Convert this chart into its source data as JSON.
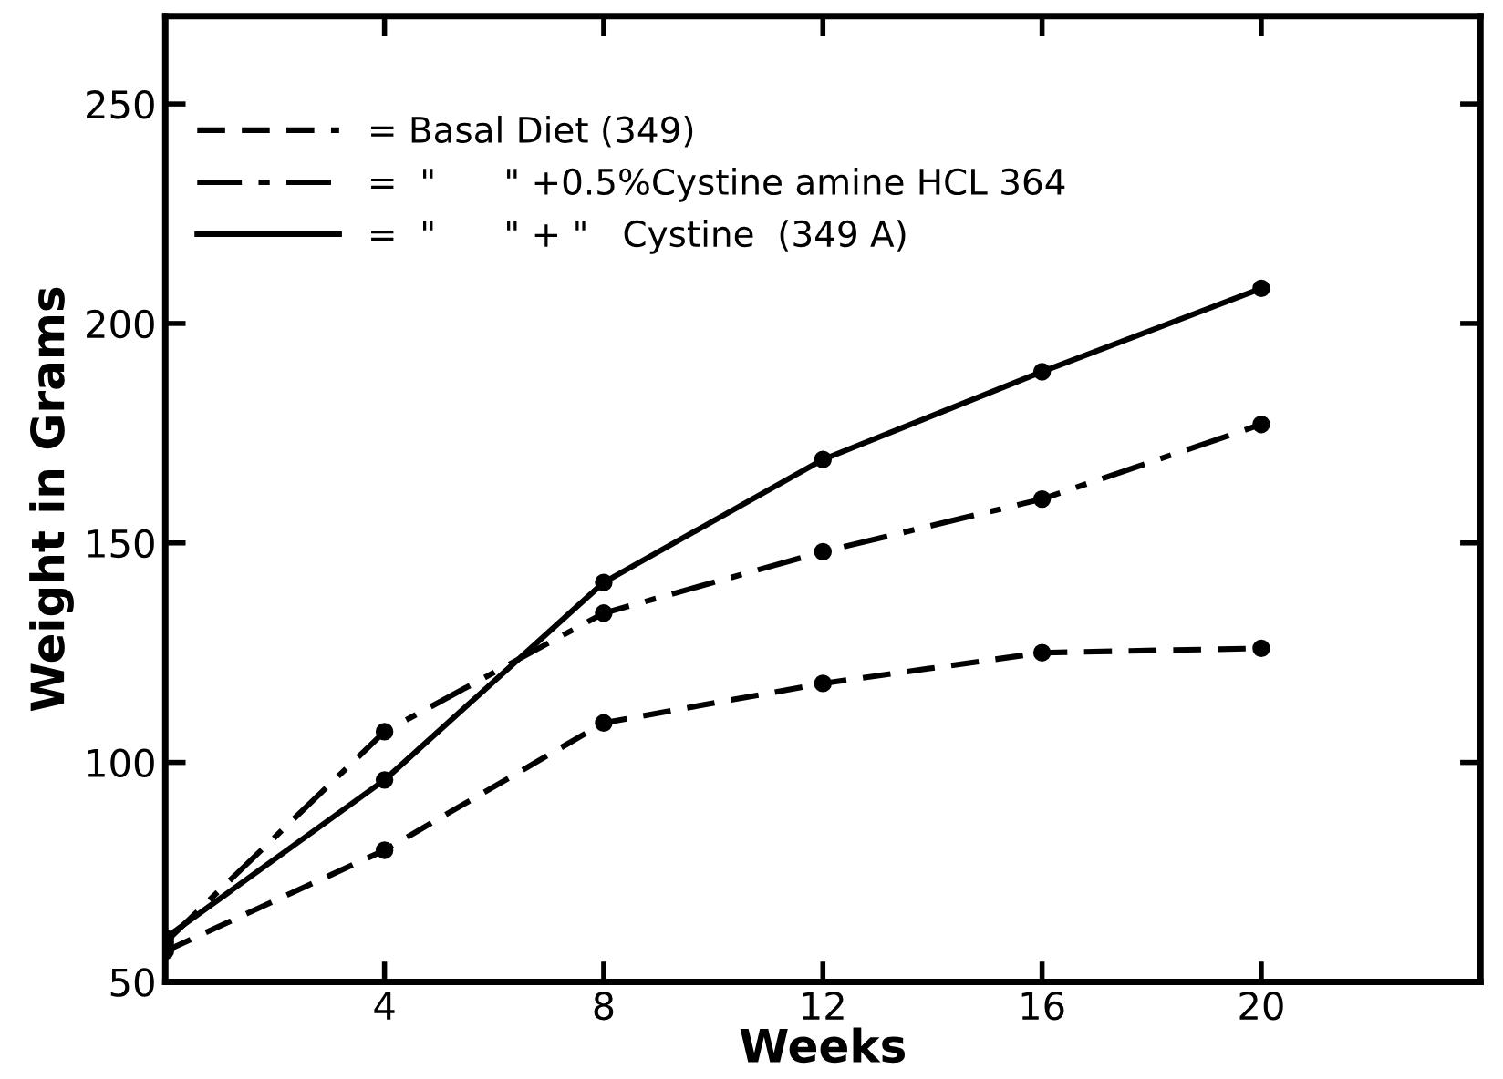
{
  "chart_data": {
    "type": "line",
    "xlabel": "Weeks",
    "ylabel": "Weight in Grams",
    "x": [
      0,
      4,
      8,
      12,
      16,
      20
    ],
    "series": [
      {
        "name": "= Basal Diet (349)",
        "color": "#000000",
        "line_style": "dashed",
        "values": [
          57,
          80,
          109,
          118,
          125,
          126
        ]
      },
      {
        "name": "=  \"      \" +0.5%Cystine amine HCL 364",
        "color": "#000000",
        "line_style": "dashdot",
        "values": [
          59,
          107,
          134,
          148,
          160,
          177
        ]
      },
      {
        "name": "=  \"      \" + \"   Cystine  (349 A)",
        "color": "#000000",
        "line_style": "solid",
        "values": [
          60,
          96,
          141,
          169,
          189,
          208
        ]
      }
    ],
    "xlim": [
      0,
      24
    ],
    "ylim": [
      50,
      270
    ],
    "xticks": [
      4,
      8,
      12,
      16,
      20
    ],
    "yticks": [
      50,
      100,
      150,
      200,
      250
    ],
    "marker": "circle",
    "legend": "top left",
    "grid": false
  }
}
